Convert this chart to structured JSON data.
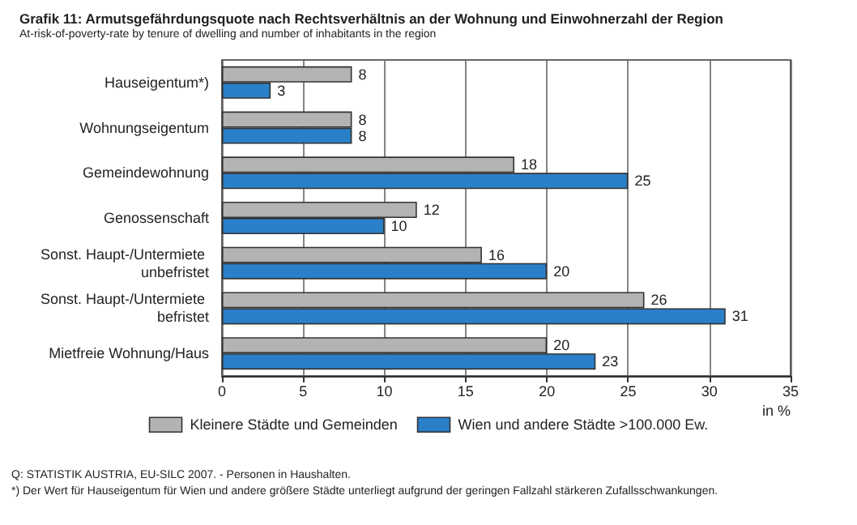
{
  "chart_data": {
    "type": "bar",
    "orientation": "horizontal",
    "title": "Grafik 11: Armutsgefährdungsquote nach Rechtsverhältnis an der Wohnung und Einwohnerzahl der Region",
    "subtitle": "At-risk-of-poverty-rate by tenure of dwelling and number of inhabitants in the region",
    "xlabel": "in %",
    "categories": [
      "Hauseigentum*)",
      "Wohnungseigentum",
      "Gemeindewohnung",
      "Genossenschaft",
      "Sonst. Haupt-/Untermiete unbefristet",
      "Sonst. Haupt-/Untermiete befristet",
      "Mietfreie Wohnung/Haus"
    ],
    "series": [
      {
        "name": "Kleinere Städte und Gemeinden",
        "color": "#b3b3b3",
        "values": [
          8,
          8,
          18,
          12,
          16,
          26,
          20
        ]
      },
      {
        "name": "Wien und andere Städte >100.000 Ew.",
        "color": "#2a7fc9",
        "values": [
          3,
          8,
          25,
          10,
          20,
          31,
          23
        ]
      }
    ],
    "xlim": [
      0,
      35
    ],
    "xticks": [
      0,
      5,
      10,
      15,
      20,
      25,
      30,
      35
    ],
    "grid": "x",
    "legend": "bottom",
    "data_labels": true,
    "annotations": [
      "Q: STATISTIK AUSTRIA, EU-SILC 2007. - Personen in Haushalten.",
      "*) Der Wert für Hauseigentum für Wien und andere größere Städte unterliegt aufgrund der geringen Fallzahl stärkeren Zufallsschwankungen."
    ]
  }
}
